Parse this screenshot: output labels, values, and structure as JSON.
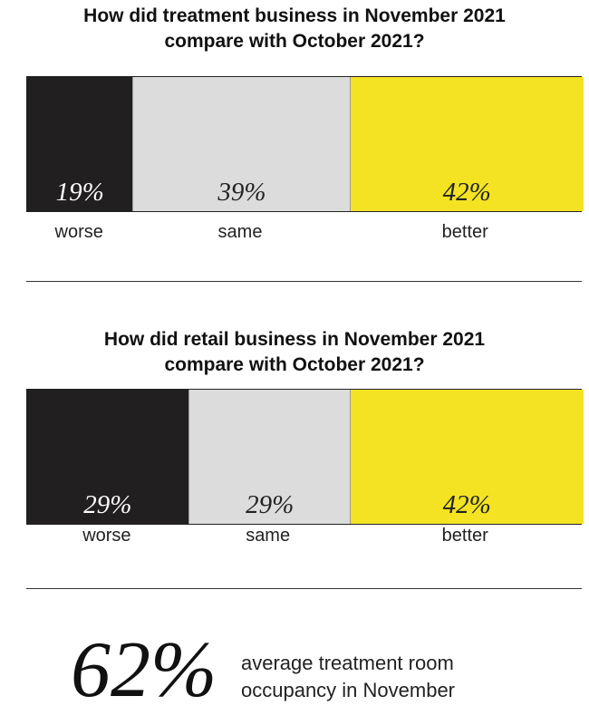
{
  "chart_data": [
    {
      "type": "bar",
      "stacked": true,
      "orientation": "horizontal",
      "title_lines": [
        "How did treatment business in November 2021",
        "compare with October 2021?"
      ],
      "categories": [
        "worse",
        "same",
        "better"
      ],
      "values": [
        19,
        39,
        42
      ],
      "value_labels": [
        "19%",
        "39%",
        "42%"
      ],
      "colors": [
        "#221f20",
        "#dcdcdc",
        "#f3e322"
      ],
      "label_colors": [
        "#ffffff",
        "#222222",
        "#222222"
      ]
    },
    {
      "type": "bar",
      "stacked": true,
      "orientation": "horizontal",
      "title_lines": [
        "How did retail business in November 2021",
        "compare with October 2021?"
      ],
      "categories": [
        "worse",
        "same",
        "better"
      ],
      "values": [
        29,
        29,
        42
      ],
      "value_labels": [
        "29%",
        "29%",
        "42%"
      ],
      "colors": [
        "#221f20",
        "#dcdcdc",
        "#f3e322"
      ],
      "label_colors": [
        "#ffffff",
        "#222222",
        "#222222"
      ]
    }
  ],
  "stat": {
    "value": "62%",
    "caption_lines": [
      "average treatment room",
      "occupancy in November"
    ]
  }
}
